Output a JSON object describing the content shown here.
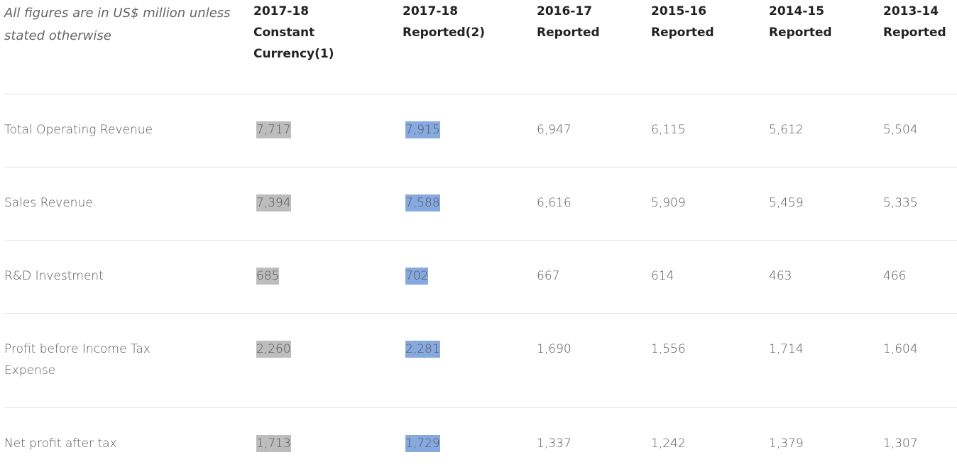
{
  "note": "All figures are in US$ million unless stated otherwise",
  "columns": [
    "2017-18\nConstant\nCurrency(1)",
    "2017-18\nReported(2)",
    "2016-17\nReported",
    "2015-16\nReported",
    "2014-15\nReported",
    "2013-14\nReported"
  ],
  "rows": [
    {
      "label": "Total Operating Revenue",
      "values": [
        "7,717",
        "7,915",
        "6,947",
        "6,115",
        "5,612",
        "5,504"
      ]
    },
    {
      "label": "Sales Revenue",
      "values": [
        "7,394",
        "7,588",
        "6,616",
        "5,909",
        "5,459",
        "5,335"
      ]
    },
    {
      "label": "R&D Investment",
      "values": [
        "685",
        "702",
        "667",
        "614",
        "463",
        "466"
      ]
    },
    {
      "label": "Profit before Income Tax Expense",
      "values": [
        "2,260",
        "2,281",
        "1,690",
        "1,556",
        "1,714",
        "1,604"
      ]
    },
    {
      "label": "Net profit after tax",
      "values": [
        "1,713",
        "1,729",
        "1,337",
        "1,242",
        "1,379",
        "1,307"
      ]
    }
  ],
  "colors": {
    "highlight_constant": "#bdbdbd",
    "highlight_reported": "#86a9e0"
  }
}
